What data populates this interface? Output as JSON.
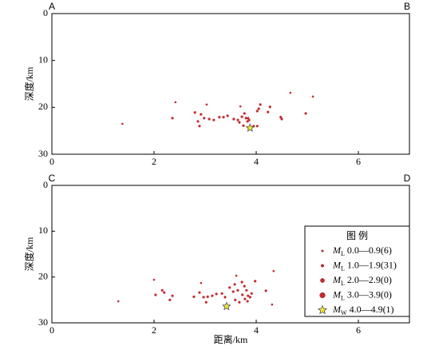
{
  "chart_data": [
    {
      "type": "scatter",
      "corner_labels": [
        "A",
        "B"
      ],
      "y_label": "深度/km",
      "xlim": [
        0,
        7
      ],
      "xticks": [
        0,
        2,
        4,
        6
      ],
      "ylim": [
        30,
        0
      ],
      "yticks": [
        0,
        10,
        20,
        30
      ],
      "series": [
        {
          "color": "#c62a2f",
          "marker": "circle",
          "x": [
            1.38,
            2.42,
            4.67,
            5.11,
            3.03,
            3.69
          ],
          "values": [
            23.5,
            18.9,
            16.9,
            17.7,
            19.4,
            19.8
          ]
        },
        {
          "color": "#c62a2f",
          "marker": "circle",
          "x": [
            2.36,
            2.8,
            2.86,
            2.89,
            2.92,
            2.98,
            3.08,
            3.17,
            3.28,
            3.36,
            3.44,
            3.56,
            3.64,
            3.72,
            3.77,
            3.8,
            3.83,
            3.86,
            3.95,
            4.02,
            4.02,
            4.05,
            4.08,
            4.23,
            4.27,
            4.48,
            4.5,
            4.97,
            3.67,
            3.75,
            3.84
          ],
          "values": [
            22.3,
            21.1,
            23.0,
            24.0,
            21.5,
            22.3,
            22.5,
            22.7,
            22.1,
            22.1,
            21.8,
            22.5,
            22.7,
            22.0,
            21.3,
            22.3,
            23.0,
            22.7,
            24.0,
            24.0,
            20.8,
            20.3,
            19.4,
            21.0,
            19.9,
            22.1,
            22.5,
            21.3,
            23.2,
            23.9,
            22.3
          ]
        },
        {
          "color": "#f2e830",
          "marker": "star",
          "x": [
            3.88
          ],
          "values": [
            24.4
          ]
        }
      ]
    },
    {
      "type": "scatter",
      "corner_labels": [
        "C",
        "D"
      ],
      "y_label": "深度/km",
      "x_label": "距离/km",
      "xlim": [
        0,
        7
      ],
      "xticks": [
        0,
        2,
        4,
        6
      ],
      "ylim": [
        30,
        0
      ],
      "yticks": [
        0,
        10,
        20,
        30
      ],
      "legend_title": "图 例",
      "series": [
        {
          "label": {
            "main": "M",
            "sub": "L",
            "text": " 0.0—0.9(6)"
          },
          "color": "#c62a2f",
          "marker": "circle",
          "x": [
            1.3,
            2.0,
            4.34,
            3.61,
            2.92,
            4.31
          ],
          "values": [
            25.3,
            20.6,
            18.7,
            19.7,
            21.3,
            26.0
          ]
        },
        {
          "label": {
            "main": "M",
            "sub": "L",
            "text": " 1.0—1.9(31)"
          },
          "color": "#c62a2f",
          "marker": "circle",
          "x": [
            2.03,
            2.16,
            2.2,
            2.31,
            2.36,
            2.78,
            2.89,
            2.97,
            3.02,
            3.05,
            3.14,
            3.22,
            3.33,
            3.39,
            3.48,
            3.55,
            3.59,
            3.64,
            3.67,
            3.72,
            3.73,
            3.77,
            3.78,
            3.81,
            3.84,
            3.88,
            3.91,
            3.83,
            3.98,
            4.19,
            3.58
          ],
          "values": [
            23.9,
            22.9,
            23.4,
            25.0,
            24.1,
            24.3,
            23.4,
            24.4,
            25.5,
            24.3,
            24.1,
            23.7,
            23.6,
            24.4,
            22.3,
            23.2,
            25.0,
            22.9,
            25.5,
            21.1,
            23.9,
            22.0,
            24.8,
            22.9,
            24.1,
            24.4,
            23.6,
            25.3,
            20.9,
            23.0,
            21.6
          ]
        },
        {
          "label": {
            "main": "M",
            "sub": "L",
            "text": " 2.0—2.9(0)"
          },
          "color": "#c62a2f",
          "marker": "circle",
          "x": [],
          "values": []
        },
        {
          "label": {
            "main": "M",
            "sub": "L",
            "text": " 3.0—3.9(0)"
          },
          "color": "#c62a2f",
          "marker": "circle",
          "x": [],
          "values": []
        },
        {
          "label": {
            "main": "M",
            "sub": "W",
            "text": " 4.0—4.9(1)"
          },
          "color": "#f2e830",
          "marker": "star",
          "x": [
            3.42
          ],
          "values": [
            26.4
          ]
        }
      ]
    }
  ]
}
